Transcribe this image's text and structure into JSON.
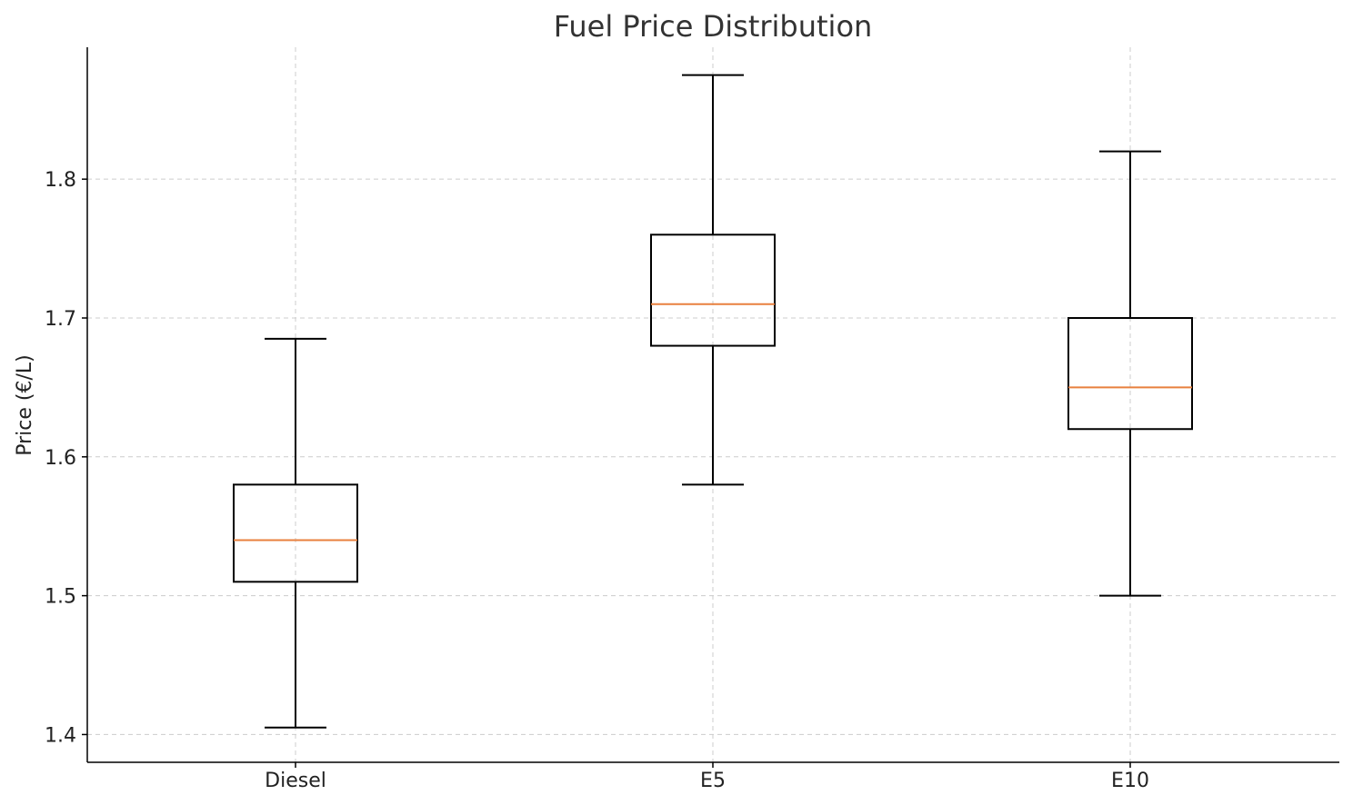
{
  "chart_data": {
    "type": "box",
    "title": "Fuel Price Distribution",
    "xlabel": "",
    "ylabel": "Price (€/L)",
    "ylim": [
      1.38,
      1.895
    ],
    "yticks": [
      "1.4",
      "1.5",
      "1.6",
      "1.7",
      "1.8"
    ],
    "grid": true,
    "categories": [
      "Diesel",
      "E5",
      "E10"
    ],
    "boxes": [
      {
        "category": "Diesel",
        "min": 1.405,
        "q1": 1.51,
        "median": 1.54,
        "q3": 1.58,
        "max": 1.685
      },
      {
        "category": "E5",
        "min": 1.58,
        "q1": 1.68,
        "median": 1.71,
        "q3": 1.76,
        "max": 1.875
      },
      {
        "category": "E10",
        "min": 1.5,
        "q1": 1.62,
        "median": 1.65,
        "q3": 1.7,
        "max": 1.82
      }
    ],
    "colors": {
      "box": "#000000",
      "median": "#e8803e",
      "grid": "#cccccc"
    }
  }
}
